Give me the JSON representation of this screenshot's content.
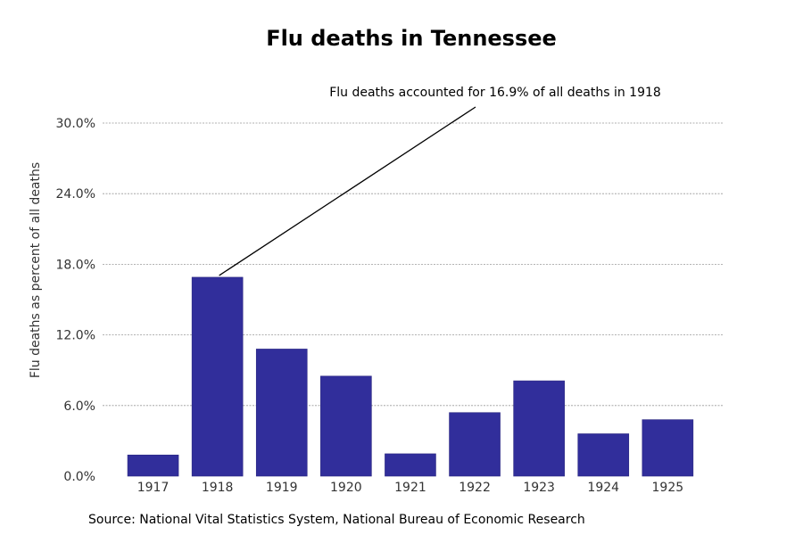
{
  "chart_data": {
    "type": "bar",
    "title": "Flu deaths in Tennessee",
    "xlabel": "",
    "ylabel": "Flu deaths as percent of all deaths",
    "categories": [
      "1917",
      "1918",
      "1919",
      "1920",
      "1921",
      "1922",
      "1923",
      "1924",
      "1925"
    ],
    "values": [
      1.8,
      16.9,
      10.8,
      8.5,
      1.9,
      5.4,
      8.1,
      3.6,
      4.8
    ],
    "ylim": [
      0,
      30
    ],
    "yticks": [
      0,
      6,
      12,
      18,
      24,
      30
    ],
    "ytick_labels": [
      "0.0%",
      "6.0%",
      "12.0%",
      "18.0%",
      "24.0%",
      "30.0%"
    ],
    "grid": true,
    "bar_color": "#312e9b",
    "annotation": {
      "text": "Flu deaths accounted for 16.9% of all deaths in 1918",
      "category": "1918",
      "value": 16.9
    }
  },
  "footer": {
    "source": "Source: National Vital Statistics System, National Bureau of Economic Research"
  }
}
